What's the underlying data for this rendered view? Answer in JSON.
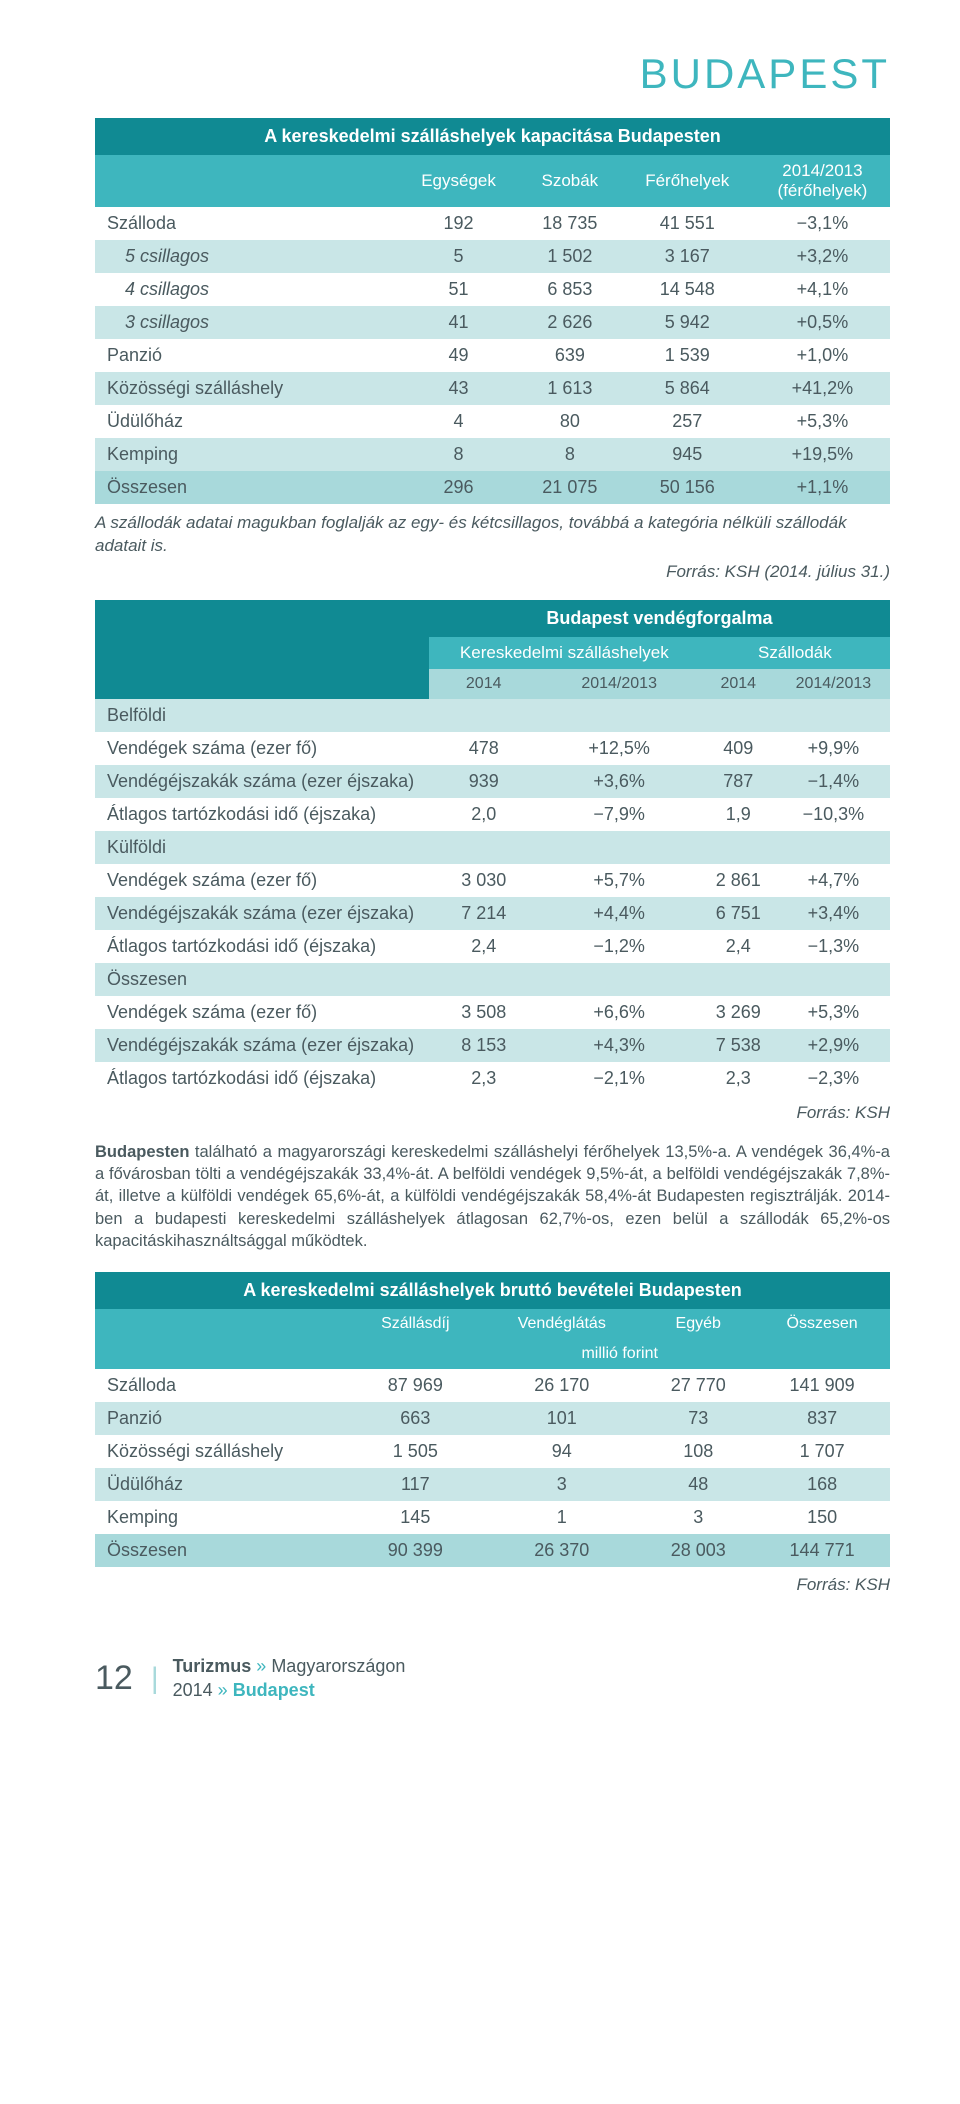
{
  "page_header": "BUDAPEST",
  "colors": {
    "teal_dark": "#108a93",
    "teal_mid": "#3eb6be",
    "teal_light": "#a8d9db",
    "mint": "#c9e6e7",
    "text": "#4a5a5f",
    "bg": "#ffffff"
  },
  "table1": {
    "title": "A kereskedelmi szálláshelyek kapacitása Budapesten",
    "cols": [
      "Egységek",
      "Szobák",
      "Férőhelyek",
      "2014/2013 (férőhelyek)"
    ],
    "rows": [
      {
        "label": "Szálloda",
        "indent": false,
        "bg": "white",
        "c": [
          "192",
          "18 735",
          "41 551",
          "−3,1%"
        ]
      },
      {
        "label": "5 csillagos",
        "indent": true,
        "bg": "mint",
        "c": [
          "5",
          "1 502",
          "3 167",
          "+3,2%"
        ]
      },
      {
        "label": "4 csillagos",
        "indent": true,
        "bg": "white",
        "c": [
          "51",
          "6 853",
          "14 548",
          "+4,1%"
        ]
      },
      {
        "label": "3 csillagos",
        "indent": true,
        "bg": "mint",
        "c": [
          "41",
          "2 626",
          "5 942",
          "+0,5%"
        ]
      },
      {
        "label": "Panzió",
        "indent": false,
        "bg": "white",
        "c": [
          "49",
          "639",
          "1 539",
          "+1,0%"
        ]
      },
      {
        "label": "Közösségi szálláshely",
        "indent": false,
        "bg": "mint",
        "c": [
          "43",
          "1 613",
          "5 864",
          "+41,2%"
        ]
      },
      {
        "label": "Üdülőház",
        "indent": false,
        "bg": "white",
        "c": [
          "4",
          "80",
          "257",
          "+5,3%"
        ]
      },
      {
        "label": "Kemping",
        "indent": false,
        "bg": "mint",
        "c": [
          "8",
          "8",
          "945",
          "+19,5%"
        ]
      },
      {
        "label": "Összesen",
        "indent": false,
        "bg": "total",
        "c": [
          "296",
          "21 075",
          "50 156",
          "+1,1%"
        ]
      }
    ],
    "note": "A szállodák adatai magukban foglalják az egy- és kétcsillagos, továbbá a kategória nélküli szállodák adatait is.",
    "source": "Forrás: KSH (2014. július 31.)"
  },
  "table2": {
    "title": "Budapest vendégforgalma",
    "group1": "Kereskedelmi szálláshelyek",
    "group2": "Szállodák",
    "subcols": [
      "2014",
      "2014/2013",
      "2014",
      "2014/2013"
    ],
    "sections": [
      {
        "name": "Belföldi",
        "rows": [
          {
            "label": "Vendégek száma (ezer fő)",
            "c": [
              "478",
              "+12,5%",
              "409",
              "+9,9%"
            ]
          },
          {
            "label": "Vendégéjszakák száma (ezer éjszaka)",
            "c": [
              "939",
              "+3,6%",
              "787",
              "−1,4%"
            ]
          },
          {
            "label": "Átlagos tartózkodási idő (éjszaka)",
            "c": [
              "2,0",
              "−7,9%",
              "1,9",
              "−10,3%"
            ]
          }
        ]
      },
      {
        "name": "Külföldi",
        "rows": [
          {
            "label": "Vendégek száma (ezer fő)",
            "c": [
              "3 030",
              "+5,7%",
              "2 861",
              "+4,7%"
            ]
          },
          {
            "label": "Vendégéjszakák száma (ezer éjszaka)",
            "c": [
              "7 214",
              "+4,4%",
              "6 751",
              "+3,4%"
            ]
          },
          {
            "label": "Átlagos tartózkodási idő (éjszaka)",
            "c": [
              "2,4",
              "−1,2%",
              "2,4",
              "−1,3%"
            ]
          }
        ]
      },
      {
        "name": "Összesen",
        "rows": [
          {
            "label": "Vendégek száma (ezer fő)",
            "c": [
              "3 508",
              "+6,6%",
              "3 269",
              "+5,3%"
            ]
          },
          {
            "label": "Vendégéjszakák száma (ezer éjszaka)",
            "c": [
              "8 153",
              "+4,3%",
              "7 538",
              "+2,9%"
            ]
          },
          {
            "label": "Átlagos tartózkodási idő (éjszaka)",
            "c": [
              "2,3",
              "−2,1%",
              "2,3",
              "−2,3%"
            ]
          }
        ]
      }
    ],
    "source": "Forrás: KSH"
  },
  "paragraph": {
    "bold_lead": "Budapesten",
    "text": " található a magyarországi kereskedelmi szálláshelyi férőhelyek 13,5%-a. A vendégek 36,4%-a a fővárosban tölti a vendégéjszakák 33,4%-át. A belföldi vendégek 9,5%-át, a belföldi vendégéjszakák 7,8%-át, illetve a külföldi vendégek 65,6%-át, a külföldi vendégéjszakák 58,4%-át Budapesten regisztrálják. 2014-ben a budapesti kereskedelmi szálláshelyek átlagosan 62,7%-os, ezen belül a szállodák 65,2%-os kapacitáskihasználtsággal működtek."
  },
  "table3": {
    "title": "A kereskedelmi szálláshelyek bruttó bevételei Budapesten",
    "cols": [
      "Szállásdíj",
      "Vendéglátás",
      "Egyéb",
      "Összesen"
    ],
    "unit": "millió forint",
    "rows": [
      {
        "label": "Szálloda",
        "bg": "white",
        "c": [
          "87 969",
          "26 170",
          "27 770",
          "141 909"
        ]
      },
      {
        "label": "Panzió",
        "bg": "mint",
        "c": [
          "663",
          "101",
          "73",
          "837"
        ]
      },
      {
        "label": "Közösségi szálláshely",
        "bg": "white",
        "c": [
          "1 505",
          "94",
          "108",
          "1 707"
        ]
      },
      {
        "label": "Üdülőház",
        "bg": "mint",
        "c": [
          "117",
          "3",
          "48",
          "168"
        ]
      },
      {
        "label": "Kemping",
        "bg": "white",
        "c": [
          "145",
          "1",
          "3",
          "150"
        ]
      },
      {
        "label": "Összesen",
        "bg": "total",
        "c": [
          "90 399",
          "26 370",
          "28 003",
          "144 771"
        ]
      }
    ],
    "source": "Forrás: KSH"
  },
  "footer": {
    "page_number": "12",
    "line1_a": "Turizmus ",
    "line1_b": "»",
    "line1_c": " Magyarországon",
    "line2_a": "2014 ",
    "line2_b": "»",
    "line2_c": " Budapest"
  }
}
